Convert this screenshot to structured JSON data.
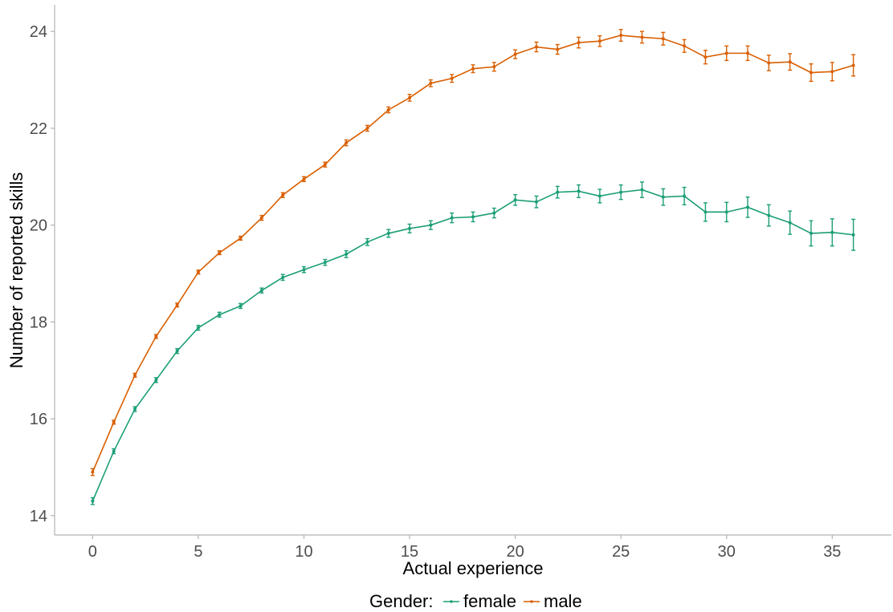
{
  "chart_data": {
    "type": "line",
    "xlabel": "Actual experience",
    "ylabel": "Number of reported skills",
    "xlim": [
      -1.8,
      37.8
    ],
    "ylim": [
      13.6,
      24.55
    ],
    "x_ticks": [
      0,
      5,
      10,
      15,
      20,
      25,
      30,
      35
    ],
    "y_ticks": [
      14,
      16,
      18,
      20,
      22,
      24
    ],
    "grid": false,
    "legend": {
      "title": "Gender:",
      "position": "bottom"
    },
    "x": [
      0,
      1,
      2,
      3,
      4,
      5,
      6,
      7,
      8,
      9,
      10,
      11,
      12,
      13,
      14,
      15,
      16,
      17,
      18,
      19,
      20,
      21,
      22,
      23,
      24,
      25,
      26,
      27,
      28,
      29,
      30,
      31,
      32,
      33,
      34,
      35,
      36
    ],
    "series": [
      {
        "name": "female",
        "color": "#1b9e77",
        "values": [
          14.3,
          15.33,
          16.2,
          16.8,
          17.4,
          17.88,
          18.15,
          18.33,
          18.65,
          18.92,
          19.08,
          19.23,
          19.4,
          19.65,
          19.83,
          19.93,
          20.0,
          20.15,
          20.17,
          20.25,
          20.52,
          20.48,
          20.68,
          20.7,
          20.6,
          20.68,
          20.73,
          20.58,
          20.6,
          20.27,
          20.27,
          20.37,
          20.2,
          20.05,
          19.83,
          19.85,
          19.8
        ],
        "errors": [
          0.07,
          0.05,
          0.05,
          0.05,
          0.05,
          0.05,
          0.05,
          0.05,
          0.05,
          0.06,
          0.06,
          0.06,
          0.07,
          0.07,
          0.08,
          0.09,
          0.09,
          0.1,
          0.1,
          0.1,
          0.11,
          0.12,
          0.12,
          0.13,
          0.14,
          0.15,
          0.16,
          0.17,
          0.18,
          0.19,
          0.2,
          0.21,
          0.22,
          0.24,
          0.26,
          0.28,
          0.32
        ]
      },
      {
        "name": "male",
        "color": "#d95f02",
        "values": [
          14.9,
          15.93,
          16.9,
          17.7,
          18.35,
          19.03,
          19.43,
          19.73,
          20.15,
          20.62,
          20.95,
          21.25,
          21.7,
          22.0,
          22.38,
          22.63,
          22.93,
          23.03,
          23.23,
          23.27,
          23.53,
          23.68,
          23.63,
          23.77,
          23.8,
          23.92,
          23.88,
          23.85,
          23.7,
          23.47,
          23.55,
          23.55,
          23.35,
          23.37,
          23.15,
          23.17,
          23.3
        ],
        "errors": [
          0.07,
          0.04,
          0.04,
          0.04,
          0.04,
          0.04,
          0.04,
          0.04,
          0.05,
          0.05,
          0.05,
          0.05,
          0.06,
          0.06,
          0.06,
          0.07,
          0.07,
          0.08,
          0.08,
          0.09,
          0.09,
          0.1,
          0.1,
          0.11,
          0.11,
          0.12,
          0.12,
          0.13,
          0.13,
          0.14,
          0.15,
          0.15,
          0.16,
          0.17,
          0.18,
          0.19,
          0.22
        ]
      }
    ]
  }
}
